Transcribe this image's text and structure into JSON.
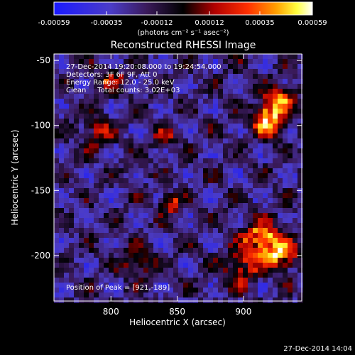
{
  "chart_data": {
    "type": "heatmap",
    "title": "Reconstructed RHESSI Image",
    "xlabel": "Heliocentric X (arcsec)",
    "ylabel": "Heliocentric Y (arcsec)",
    "xlim": [
      757,
      944
    ],
    "ylim": [
      -235,
      -45
    ],
    "x_ticks": [
      800,
      850,
      900
    ],
    "y_ticks": [
      -50,
      -100,
      -150,
      -200
    ],
    "colorbar": {
      "range": [
        -0.00059,
        0.00059
      ],
      "tick_values": [
        -0.00059,
        -0.00035,
        -0.00012,
        0.00012,
        0.00035,
        0.00059
      ],
      "tick_labels": [
        "-0.00059",
        "-0.00035",
        "-0.00012",
        "0.00012",
        "0.00035",
        "0.00059"
      ],
      "unit_label": "(photons cm⁻² s⁻¹ asec⁻²)"
    },
    "annotations": [
      "27-Dec-2014 19:20:08.000 to 19:24:54.000",
      "Detectors: 3F 6F 9F, Att 0",
      "Energy Range: 12.0 - 25.0 keV",
      "Clean     Total counts: 3.02E+03"
    ],
    "peak_label": "Position of Peak = [921,-189]",
    "peak": [
      921,
      -189
    ],
    "timestamp": "27-Dec-2014 14:04",
    "grid": false,
    "colormap": "blue-purple-red-yellow-white",
    "sources": [
      {
        "x": 920,
        "y": -95,
        "sigma": 9,
        "amp": 1.0
      },
      {
        "x": 928,
        "y": -78,
        "sigma": 7,
        "amp": 0.7
      },
      {
        "x": 915,
        "y": -188,
        "sigma": 10,
        "amp": 1.0
      },
      {
        "x": 930,
        "y": -200,
        "sigma": 8,
        "amp": 0.8
      },
      {
        "x": 898,
        "y": -210,
        "sigma": 9,
        "amp": 0.6
      },
      {
        "x": 845,
        "y": -160,
        "sigma": 5,
        "amp": 0.8
      },
      {
        "x": 840,
        "y": -110,
        "sigma": 5,
        "amp": 0.6
      },
      {
        "x": 790,
        "y": -105,
        "sigma": 8,
        "amp": 0.5
      },
      {
        "x": 820,
        "y": -205,
        "sigma": 8,
        "amp": 0.45
      },
      {
        "x": 800,
        "y": -65,
        "sigma": 7,
        "amp": 0.45
      }
    ]
  }
}
